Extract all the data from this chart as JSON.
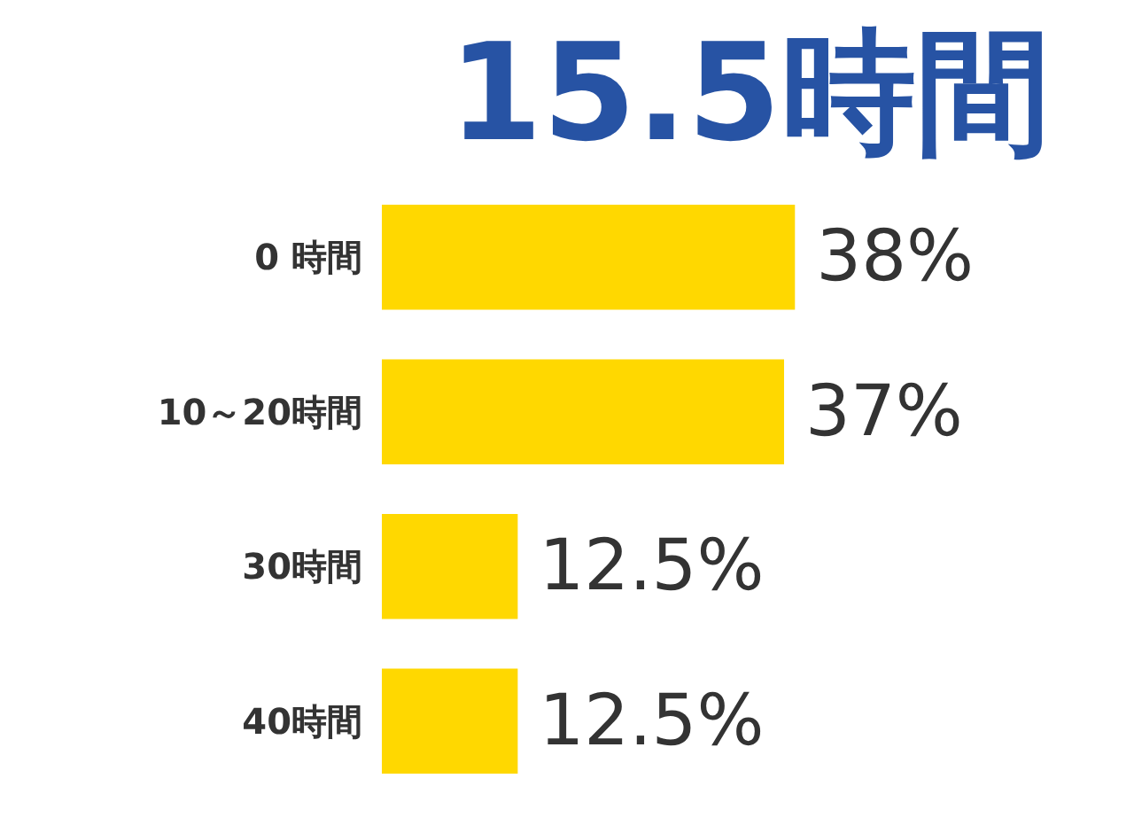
{
  "chart_data": {
    "type": "bar",
    "orientation": "horizontal",
    "title": "15.5時間",
    "categories": [
      "0 時間",
      "10～20時間",
      "30時間",
      "40時間"
    ],
    "values": [
      38,
      37,
      12.5,
      12.5
    ],
    "color": "#ffd800",
    "value_labels": [
      "38%",
      "37%",
      "12.5%",
      "12.5%"
    ],
    "grid": false
  }
}
